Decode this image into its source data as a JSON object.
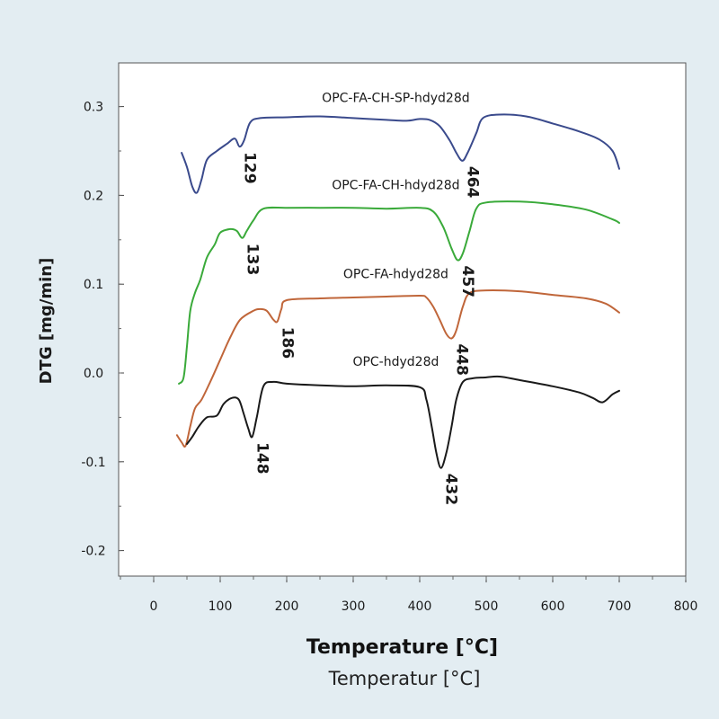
{
  "chart_data": {
    "type": "line",
    "xlabel": "Temperature [°C]",
    "xlabel_translation": "Temperatur [°C]",
    "ylabel": "DTG [mg/min]",
    "xlim": [
      -50,
      800
    ],
    "ylim": [
      -0.22,
      0.35
    ],
    "x_ticks": [
      0,
      100,
      200,
      300,
      400,
      500,
      600,
      700,
      800
    ],
    "x_tick_labels": [
      "0",
      "100",
      "200",
      "300",
      "400",
      "500",
      "600",
      "700",
      "800"
    ],
    "y_ticks": [
      -0.2,
      -0.1,
      0.0,
      0.1,
      0.2,
      0.3
    ],
    "y_tick_labels": [
      "-0.2",
      "-0.1",
      "0.0",
      "0.1",
      "0.2",
      "0.3"
    ],
    "grid": false,
    "series": [
      {
        "name": "OPC-FA-CH-SP-hdyd28d",
        "color": "#3a4a8c",
        "points": [
          [
            42,
            0.248
          ],
          [
            50,
            0.232
          ],
          [
            58,
            0.21
          ],
          [
            65,
            0.203
          ],
          [
            72,
            0.218
          ],
          [
            80,
            0.24
          ],
          [
            95,
            0.25
          ],
          [
            110,
            0.258
          ],
          [
            122,
            0.264
          ],
          [
            129,
            0.255
          ],
          [
            136,
            0.262
          ],
          [
            145,
            0.282
          ],
          [
            160,
            0.287
          ],
          [
            200,
            0.288
          ],
          [
            250,
            0.289
          ],
          [
            300,
            0.287
          ],
          [
            350,
            0.285
          ],
          [
            380,
            0.284
          ],
          [
            400,
            0.286
          ],
          [
            415,
            0.285
          ],
          [
            430,
            0.278
          ],
          [
            445,
            0.262
          ],
          [
            455,
            0.248
          ],
          [
            464,
            0.239
          ],
          [
            472,
            0.248
          ],
          [
            485,
            0.27
          ],
          [
            495,
            0.287
          ],
          [
            520,
            0.291
          ],
          [
            560,
            0.289
          ],
          [
            600,
            0.281
          ],
          [
            640,
            0.272
          ],
          [
            670,
            0.263
          ],
          [
            690,
            0.25
          ],
          [
            700,
            0.23
          ]
        ]
      },
      {
        "name": "OPC-FA-CH-hdyd28d",
        "color": "#3aaa3a",
        "points": [
          [
            38,
            -0.012
          ],
          [
            45,
            -0.005
          ],
          [
            50,
            0.03
          ],
          [
            55,
            0.07
          ],
          [
            62,
            0.09
          ],
          [
            70,
            0.105
          ],
          [
            80,
            0.13
          ],
          [
            92,
            0.145
          ],
          [
            100,
            0.158
          ],
          [
            115,
            0.162
          ],
          [
            125,
            0.16
          ],
          [
            133,
            0.152
          ],
          [
            140,
            0.16
          ],
          [
            150,
            0.172
          ],
          [
            165,
            0.185
          ],
          [
            200,
            0.186
          ],
          [
            250,
            0.186
          ],
          [
            300,
            0.186
          ],
          [
            350,
            0.185
          ],
          [
            400,
            0.186
          ],
          [
            420,
            0.182
          ],
          [
            435,
            0.165
          ],
          [
            448,
            0.14
          ],
          [
            457,
            0.127
          ],
          [
            465,
            0.135
          ],
          [
            475,
            0.16
          ],
          [
            485,
            0.185
          ],
          [
            500,
            0.192
          ],
          [
            550,
            0.193
          ],
          [
            600,
            0.19
          ],
          [
            650,
            0.184
          ],
          [
            690,
            0.173
          ],
          [
            700,
            0.169
          ]
        ]
      },
      {
        "name": "OPC-FA-hdyd28d",
        "color": "#c0663a",
        "points": [
          [
            35,
            -0.07
          ],
          [
            42,
            -0.078
          ],
          [
            48,
            -0.082
          ],
          [
            55,
            -0.06
          ],
          [
            62,
            -0.04
          ],
          [
            72,
            -0.03
          ],
          [
            85,
            -0.01
          ],
          [
            100,
            0.015
          ],
          [
            115,
            0.04
          ],
          [
            130,
            0.06
          ],
          [
            150,
            0.07
          ],
          [
            160,
            0.072
          ],
          [
            170,
            0.07
          ],
          [
            180,
            0.06
          ],
          [
            186,
            0.058
          ],
          [
            192,
            0.072
          ],
          [
            200,
            0.082
          ],
          [
            250,
            0.084
          ],
          [
            300,
            0.085
          ],
          [
            350,
            0.086
          ],
          [
            400,
            0.087
          ],
          [
            410,
            0.085
          ],
          [
            420,
            0.075
          ],
          [
            430,
            0.06
          ],
          [
            440,
            0.044
          ],
          [
            448,
            0.039
          ],
          [
            455,
            0.048
          ],
          [
            465,
            0.075
          ],
          [
            475,
            0.09
          ],
          [
            500,
            0.093
          ],
          [
            550,
            0.092
          ],
          [
            600,
            0.088
          ],
          [
            650,
            0.084
          ],
          [
            680,
            0.078
          ],
          [
            700,
            0.068
          ]
        ]
      },
      {
        "name": "OPC-hdyd28d",
        "color": "#1a1a1a",
        "points": [
          [
            50,
            -0.08
          ],
          [
            58,
            -0.072
          ],
          [
            68,
            -0.06
          ],
          [
            80,
            -0.05
          ],
          [
            95,
            -0.048
          ],
          [
            105,
            -0.035
          ],
          [
            118,
            -0.028
          ],
          [
            128,
            -0.03
          ],
          [
            135,
            -0.045
          ],
          [
            142,
            -0.062
          ],
          [
            148,
            -0.072
          ],
          [
            155,
            -0.05
          ],
          [
            165,
            -0.015
          ],
          [
            180,
            -0.01
          ],
          [
            200,
            -0.012
          ],
          [
            250,
            -0.014
          ],
          [
            300,
            -0.015
          ],
          [
            350,
            -0.014
          ],
          [
            400,
            -0.016
          ],
          [
            410,
            -0.03
          ],
          [
            418,
            -0.06
          ],
          [
            425,
            -0.09
          ],
          [
            432,
            -0.107
          ],
          [
            440,
            -0.09
          ],
          [
            448,
            -0.06
          ],
          [
            455,
            -0.03
          ],
          [
            465,
            -0.01
          ],
          [
            480,
            -0.006
          ],
          [
            500,
            -0.005
          ],
          [
            520,
            -0.004
          ],
          [
            550,
            -0.008
          ],
          [
            600,
            -0.015
          ],
          [
            640,
            -0.022
          ],
          [
            660,
            -0.028
          ],
          [
            675,
            -0.033
          ],
          [
            690,
            -0.024
          ],
          [
            700,
            -0.02
          ]
        ]
      }
    ],
    "annotations": {
      "series_labels": [
        {
          "text": "OPC-FA-CH-SP-hdyd28d",
          "x": 310,
          "y": 0.305
        },
        {
          "text": "OPC-FA-CH-hdyd28d",
          "x": 310,
          "y": 0.207
        },
        {
          "text": "OPC-FA-hdyd28d",
          "x": 310,
          "y": 0.107
        },
        {
          "text": "OPC-hdyd28d",
          "x": 310,
          "y": 0.008
        }
      ],
      "peaks": [
        {
          "text": "129",
          "x": 129,
          "y": 0.255
        },
        {
          "text": "464",
          "x": 464,
          "y": 0.239
        },
        {
          "text": "133",
          "x": 133,
          "y": 0.152
        },
        {
          "text": "457",
          "x": 457,
          "y": 0.127
        },
        {
          "text": "186",
          "x": 186,
          "y": 0.058
        },
        {
          "text": "448",
          "x": 448,
          "y": 0.039
        },
        {
          "text": "148",
          "x": 148,
          "y": -0.072
        },
        {
          "text": "432",
          "x": 432,
          "y": -0.107
        }
      ]
    }
  }
}
